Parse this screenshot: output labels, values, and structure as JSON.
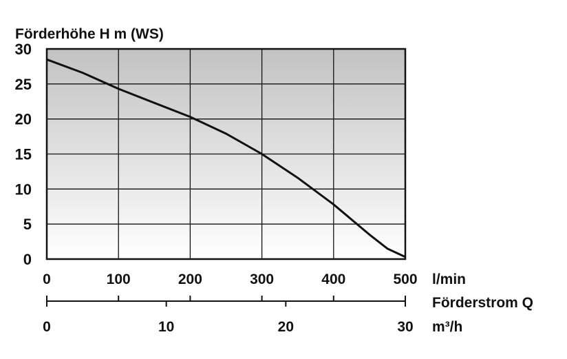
{
  "chart_data": {
    "type": "line",
    "title": "Förderhöhe H m (WS)",
    "ylabel": "Förderhöhe H m (WS)",
    "ylim": [
      0,
      30
    ],
    "yticks": [
      0,
      5,
      10,
      15,
      20,
      25,
      30
    ],
    "xlabel": "Förderstrom Q",
    "x_unit_primary": "l/min",
    "xlim": [
      0,
      500
    ],
    "xticks_primary": [
      0,
      100,
      200,
      300,
      400,
      500
    ],
    "x_unit_secondary": "m³/h",
    "xlim_secondary": [
      0,
      30
    ],
    "xticks_secondary": [
      0,
      10,
      20,
      30
    ],
    "grid": true,
    "background": "gradient grey to white",
    "series": [
      {
        "x": [
          0,
          50,
          100,
          150,
          200,
          250,
          300,
          350,
          400,
          450,
          475,
          500
        ],
        "values": [
          28.5,
          26.6,
          24.3,
          22.3,
          20.3,
          17.9,
          15.0,
          11.6,
          7.8,
          3.5,
          1.5,
          0.3
        ]
      }
    ]
  }
}
